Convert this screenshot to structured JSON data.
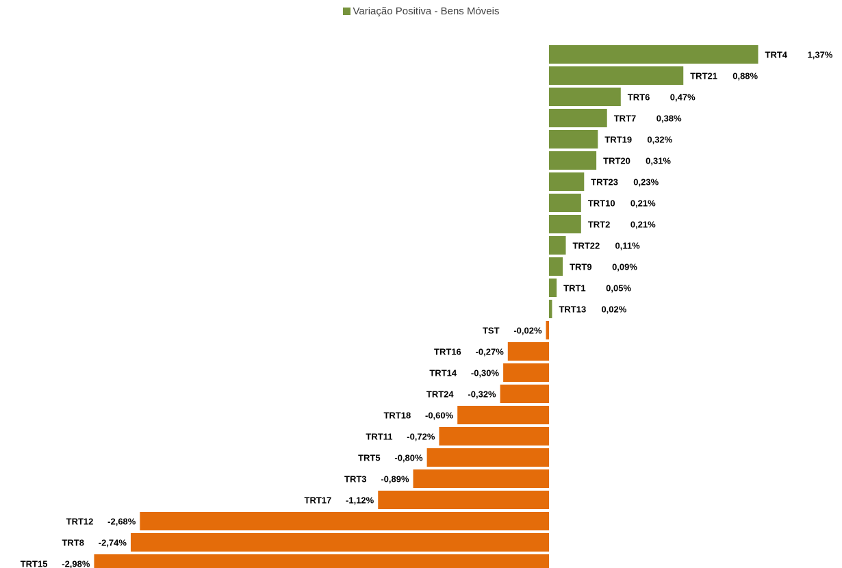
{
  "legend": {
    "label": "Variação Positiva - Bens Móveis"
  },
  "colors": {
    "positive": "#76933c",
    "negative": "#e46c0a"
  },
  "chart_data": {
    "type": "bar",
    "orientation": "horizontal",
    "legend_position": "top",
    "grid": false,
    "series": [
      {
        "name": "Variação Positiva - Bens Móveis"
      }
    ],
    "bars": [
      {
        "category": "TRT4",
        "value": 1.37,
        "label": "1,37%"
      },
      {
        "category": "TRT21",
        "value": 0.88,
        "label": "0,88%"
      },
      {
        "category": "TRT6",
        "value": 0.47,
        "label": "0,47%"
      },
      {
        "category": "TRT7",
        "value": 0.38,
        "label": "0,38%"
      },
      {
        "category": "TRT19",
        "value": 0.32,
        "label": "0,32%"
      },
      {
        "category": "TRT20",
        "value": 0.31,
        "label": "0,31%"
      },
      {
        "category": "TRT23",
        "value": 0.23,
        "label": "0,23%"
      },
      {
        "category": "TRT10",
        "value": 0.21,
        "label": "0,21%"
      },
      {
        "category": "TRT2",
        "value": 0.21,
        "label": "0,21%"
      },
      {
        "category": "TRT22",
        "value": 0.11,
        "label": "0,11%"
      },
      {
        "category": "TRT9",
        "value": 0.09,
        "label": "0,09%"
      },
      {
        "category": "TRT1",
        "value": 0.05,
        "label": "0,05%"
      },
      {
        "category": "TRT13",
        "value": 0.02,
        "label": "0,02%"
      },
      {
        "category": "TST",
        "value": -0.02,
        "label": "-0,02%"
      },
      {
        "category": "TRT16",
        "value": -0.27,
        "label": "-0,27%"
      },
      {
        "category": "TRT14",
        "value": -0.3,
        "label": "-0,30%"
      },
      {
        "category": "TRT24",
        "value": -0.32,
        "label": "-0,32%"
      },
      {
        "category": "TRT18",
        "value": -0.6,
        "label": "-0,60%"
      },
      {
        "category": "TRT11",
        "value": -0.72,
        "label": "-0,72%"
      },
      {
        "category": "TRT5",
        "value": -0.8,
        "label": "-0,80%"
      },
      {
        "category": "TRT3",
        "value": -0.89,
        "label": "-0,89%"
      },
      {
        "category": "TRT17",
        "value": -1.12,
        "label": "-1,12%"
      },
      {
        "category": "TRT12",
        "value": -2.68,
        "label": "-2,68%"
      },
      {
        "category": "TRT8",
        "value": -2.74,
        "label": "-2,74%"
      },
      {
        "category": "TRT15",
        "value": -2.98,
        "label": "-2,98%"
      }
    ]
  }
}
